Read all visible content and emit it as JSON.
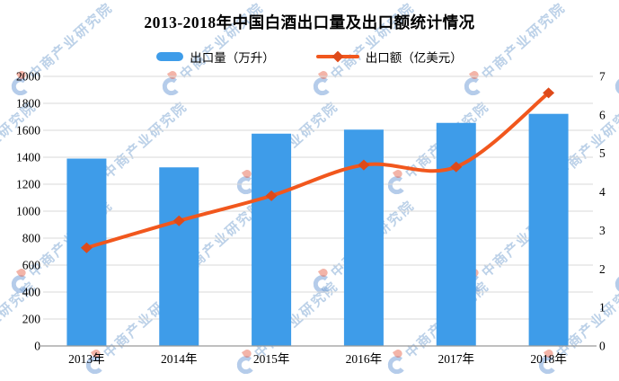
{
  "title": "2013-2018年中国白酒出口量及出口额统计情况",
  "watermark_text": "中商产业研究院",
  "legend": [
    {
      "label": "出口量（万升）",
      "type": "bar",
      "color": "#3E9CE9"
    },
    {
      "label": "出口额（亿美元）",
      "type": "line",
      "color": "#F1571D",
      "marker_color": "#DE4A1A"
    }
  ],
  "chart_data": {
    "type": "bar",
    "subtype": "bar+line dual axis",
    "title": "2013-2018年中国白酒出口量及出口额统计情况",
    "categories": [
      "2013年",
      "2014年",
      "2015年",
      "2016年",
      "2017年",
      "2018年"
    ],
    "series": [
      {
        "name": "出口量（万升）",
        "type": "bar",
        "axis": "left",
        "color": "#3E9CE9",
        "values": [
          1390,
          1325,
          1575,
          1605,
          1655,
          1722
        ]
      },
      {
        "name": "出口额（亿美元）",
        "type": "line",
        "axis": "right",
        "color": "#F1571D",
        "marker": "diamond",
        "marker_color": "#DE4A1A",
        "values": [
          2.55,
          3.25,
          3.9,
          4.7,
          4.65,
          6.57
        ]
      }
    ],
    "left_axis": {
      "min": 0,
      "max": 2000,
      "step": 200,
      "tick_labels": [
        "0",
        "200",
        "400",
        "600",
        "800",
        "1000",
        "1200",
        "1400",
        "1600",
        "1800",
        "2000"
      ]
    },
    "right_axis": {
      "min": 0,
      "max": 7,
      "step": 1,
      "tick_labels": [
        "0",
        "1",
        "2",
        "3",
        "4",
        "5",
        "6",
        "7"
      ]
    },
    "grid": true,
    "grid_color": "#D9D9D9",
    "axis_line_color": "#9B9B9B",
    "legend_position": "top",
    "xlabel": "",
    "ylabel": ""
  }
}
